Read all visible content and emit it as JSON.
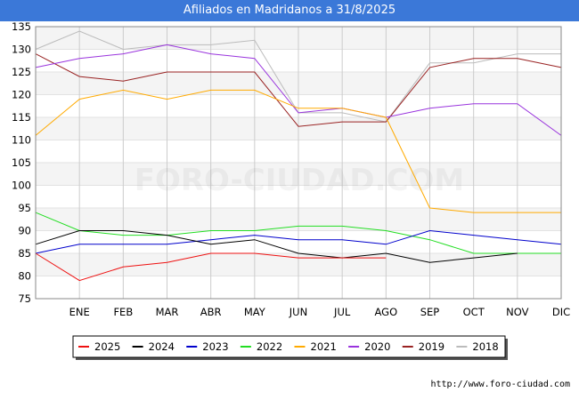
{
  "title": "Afiliados en Madridanos a 31/8/2025",
  "source": "http://www.foro-ciudad.com",
  "watermark": "FORO-CIUDAD.COM",
  "chart_data": {
    "type": "line",
    "title": "Afiliados en Madridanos a 31/8/2025",
    "xlabel": "",
    "ylabel": "",
    "categories": [
      "",
      "ENE",
      "FEB",
      "MAR",
      "ABR",
      "MAY",
      "JUN",
      "JUL",
      "AGO",
      "SEP",
      "OCT",
      "NOV",
      "DIC"
    ],
    "ylim": [
      75,
      135
    ],
    "yticks": [
      75,
      80,
      85,
      90,
      95,
      100,
      105,
      110,
      115,
      120,
      125,
      130,
      135
    ],
    "grid": true,
    "legend_position": "bottom",
    "series": [
      {
        "name": "2025",
        "color": "#ee1111",
        "values": [
          85,
          79,
          82,
          83,
          85,
          85,
          84,
          84,
          84,
          null,
          null,
          null,
          null
        ]
      },
      {
        "name": "2024",
        "color": "#000000",
        "values": [
          87,
          90,
          90,
          89,
          87,
          88,
          85,
          84,
          85,
          83,
          84,
          85,
          null
        ]
      },
      {
        "name": "2023",
        "color": "#0000cc",
        "values": [
          85,
          87,
          87,
          87,
          88,
          89,
          88,
          88,
          87,
          90,
          89,
          88,
          87
        ]
      },
      {
        "name": "2022",
        "color": "#22dd22",
        "values": [
          94,
          90,
          89,
          89,
          90,
          90,
          91,
          91,
          90,
          88,
          85,
          85,
          85
        ]
      },
      {
        "name": "2021",
        "color": "#ffaa00",
        "values": [
          111,
          119,
          121,
          119,
          121,
          121,
          117,
          117,
          115,
          95,
          94,
          94,
          94
        ]
      },
      {
        "name": "2020",
        "color": "#9933dd",
        "values": [
          126,
          128,
          129,
          131,
          129,
          128,
          116,
          117,
          115,
          117,
          118,
          118,
          111
        ]
      },
      {
        "name": "2019",
        "color": "#992222",
        "values": [
          129,
          124,
          123,
          125,
          125,
          125,
          113,
          114,
          114,
          126,
          128,
          128,
          126
        ]
      },
      {
        "name": "2018",
        "color": "#bbbbbb",
        "values": [
          130,
          134,
          130,
          131,
          131,
          132,
          116,
          116,
          114,
          127,
          127,
          129,
          129
        ]
      }
    ]
  }
}
